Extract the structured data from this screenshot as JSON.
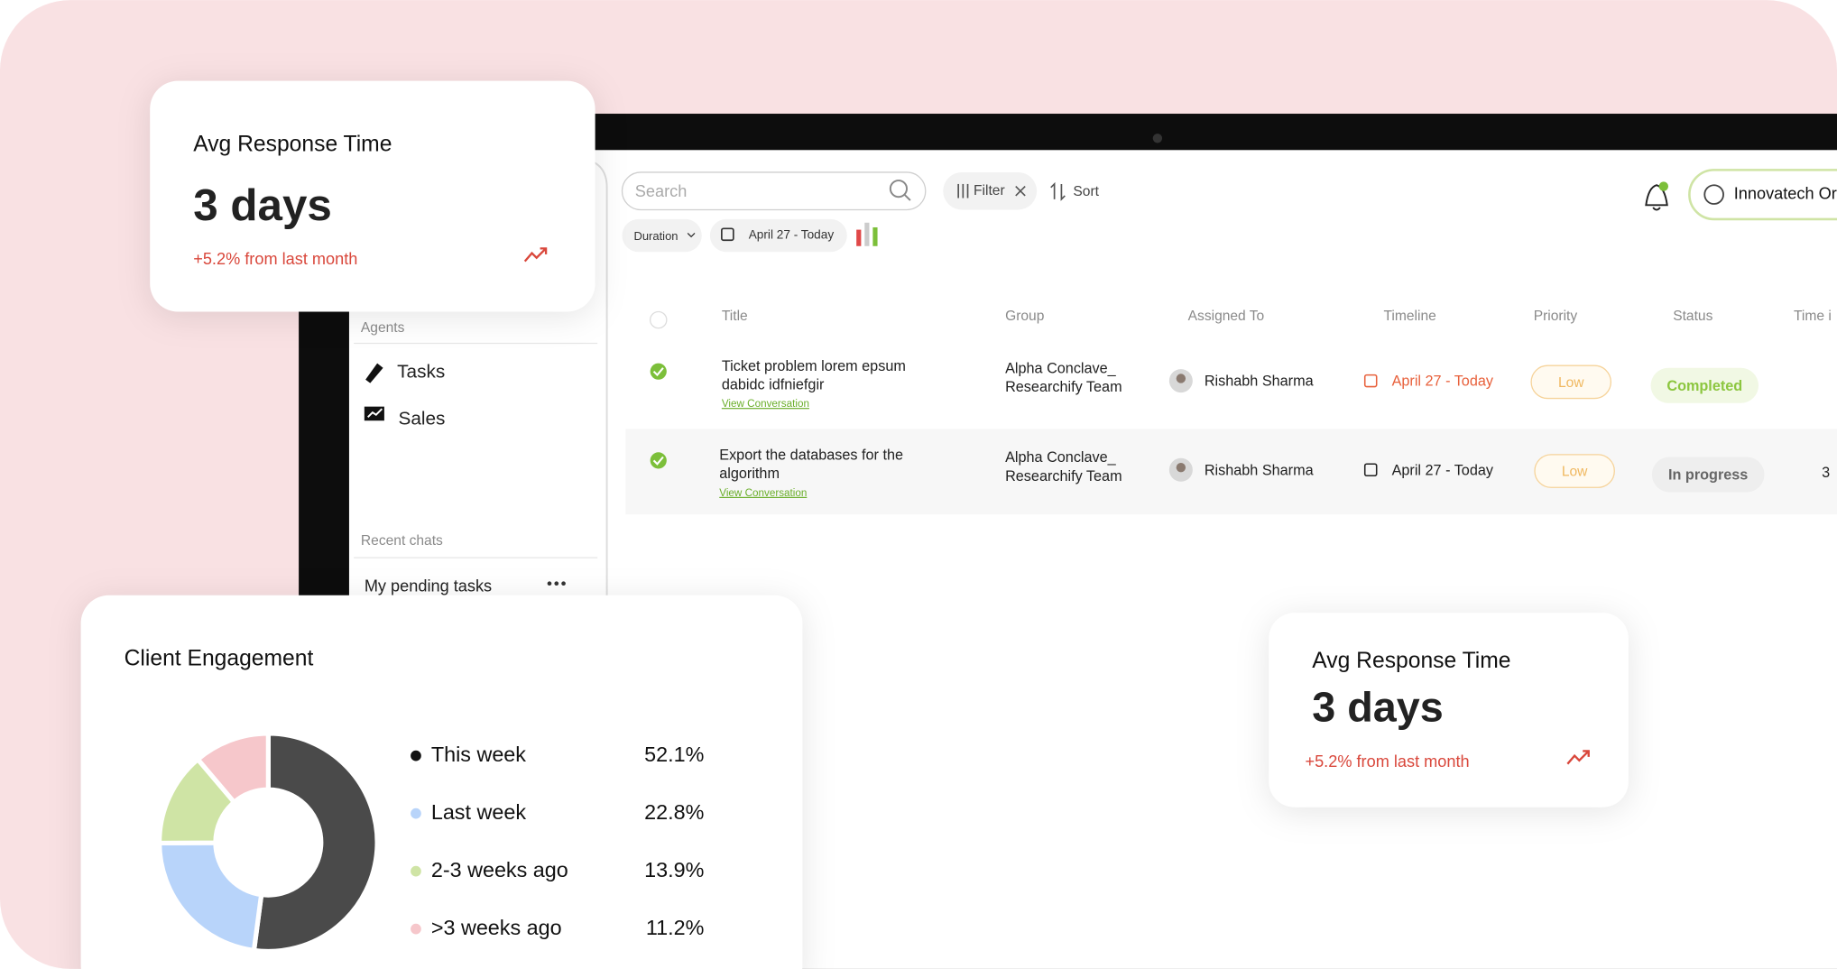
{
  "cards": [
    {
      "title": "Avg Response Time",
      "value": "3 days",
      "change": "+5.2% from last month"
    },
    {
      "title": "Avg Response Time",
      "value": "3 days",
      "change": "+5.2% from last month"
    }
  ],
  "toolbar": {
    "search": "Search",
    "filter": "Filter",
    "sort": "Sort",
    "duration": "Duration",
    "date_range": "April 27 - Today",
    "organization": "Innovatech Or"
  },
  "sidebar": {
    "section": "Agents",
    "items": [
      "Tasks",
      "Sales"
    ],
    "recent_heading": "Recent chats",
    "recent": [
      "My pending tasks"
    ]
  },
  "table": {
    "columns": [
      "Title",
      "Group",
      "Assigned To",
      "Timeline",
      "Priority",
      "Status",
      "Time i"
    ],
    "rows": [
      {
        "title": [
          "Ticket problem lorem epsum",
          "dabidc idfniefgir"
        ],
        "link": "View Conversation",
        "group": [
          "Alpha Conclave_",
          "Researchify Team"
        ],
        "assignee": "Rishabh Sharma",
        "timeline": "April 27 - Today",
        "priority": "Low",
        "status": "Completed"
      },
      {
        "title": [
          "Export the databases for the",
          "algorithm"
        ],
        "link": "View Conversation",
        "group": [
          "Alpha Conclave_",
          "Researchify Team"
        ],
        "assignee": "Rishabh Sharma",
        "timeline": "April 27 - Today",
        "priority": "Low",
        "status": "In progress",
        "time": "3"
      }
    ]
  },
  "chart_data": {
    "type": "donut",
    "title": "Client Engagement",
    "categories": [
      "This week",
      "Last week",
      "2-3 weeks ago",
      ">3 weeks ago"
    ],
    "values": [
      52.1,
      22.8,
      13.9,
      11.2
    ],
    "value_labels": [
      "52.1%",
      "22.8%",
      "13.9%",
      "11.2%"
    ],
    "colors": [
      "#4a4a4a",
      "#b8d4fa",
      "#cfe4a5",
      "#f6c7cb"
    ],
    "legend_dot_colors": [
      "#111111",
      "#b8d4fa",
      "#cfe4a5",
      "#f6c7cb"
    ]
  }
}
